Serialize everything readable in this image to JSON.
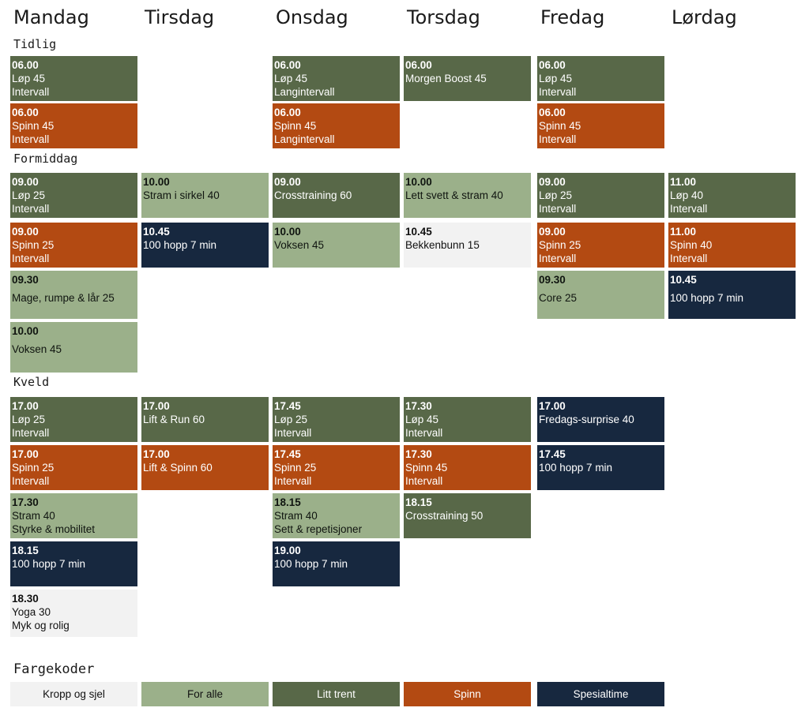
{
  "days": [
    "Mandag",
    "Tirsdag",
    "Onsdag",
    "Torsdag",
    "Fredag",
    "Lørdag"
  ],
  "sections": {
    "early": "Tidlig",
    "morning": "Formiddag",
    "evening": "Kveld"
  },
  "colors": {
    "litt_trent": "#586848",
    "for_alle": "#9bb08a",
    "spinn": "#b34a12",
    "spesialtime": "#17283f",
    "kropp_og_sjel": "#f2f2f2"
  },
  "mon": [
    {
      "time": "06.00",
      "name": "Løp 45",
      "sub": "Intervall"
    },
    {
      "time": "06.00",
      "name": "Spinn 45",
      "sub": "Intervall"
    },
    {
      "time": "09.00",
      "name": "Løp 25",
      "sub": "Intervall"
    },
    {
      "time": "09.00",
      "name": "Spinn 25",
      "sub": "Intervall"
    },
    {
      "time": "09.30",
      "name": "Mage, rumpe & lår 25"
    },
    {
      "time": "10.00",
      "name": "Voksen 45"
    },
    {
      "time": "17.00",
      "name": "Løp 25",
      "sub": "Intervall"
    },
    {
      "time": "17.00",
      "name": "Spinn 25",
      "sub": "Intervall"
    },
    {
      "time": "17.30",
      "name": "Stram 40",
      "sub": "Styrke & mobilitet"
    },
    {
      "time": "18.15",
      "name": "100 hopp 7  min"
    },
    {
      "time": "18.30",
      "name": "Yoga 30",
      "sub": "Myk og rolig"
    }
  ],
  "tue": [
    {
      "time": "10.00",
      "name": "Stram i sirkel 40"
    },
    {
      "time": "10.45",
      "name": "100 hopp 7 min"
    },
    {
      "time": "17.00",
      "name": "Lift & Run 60"
    },
    {
      "time": "17.00",
      "name": "Lift & Spinn 60"
    }
  ],
  "wed": [
    {
      "time": "06.00",
      "name": "Løp 45",
      "sub": "Langintervall"
    },
    {
      "time": "06.00",
      "name": "Spinn 45",
      "sub": "Langintervall"
    },
    {
      "time": "09.00",
      "name": "Crosstraining 60"
    },
    {
      "time": "10.00",
      "name": "Voksen 45"
    },
    {
      "time": "17.45",
      "name": "Løp 25",
      "sub": "Intervall"
    },
    {
      "time": "17.45",
      "name": "Spinn 25",
      "sub": "Intervall"
    },
    {
      "time": "18.15",
      "name": "Stram 40",
      "sub": "Sett & repetisjoner"
    },
    {
      "time": "19.00",
      "name": "100 hopp 7  min"
    }
  ],
  "thu": [
    {
      "time": "06.00",
      "name": "Morgen Boost 45"
    },
    {
      "time": "10.00",
      "name": "Lett svett & stram 40"
    },
    {
      "time": "10.45",
      "name": "Bekkenbunn 15"
    },
    {
      "time": "17.30",
      "name": "Løp 45",
      "sub": "Intervall"
    },
    {
      "time": "17.30",
      "name": "Spinn 45",
      "sub": "Intervall"
    },
    {
      "time": "18.15",
      "name": "Crosstraining 50"
    }
  ],
  "fri": [
    {
      "time": "06.00",
      "name": "Løp 45",
      "sub": "Intervall"
    },
    {
      "time": "06.00",
      "name": "Spinn 45",
      "sub": "Intervall"
    },
    {
      "time": "09.00",
      "name": "Løp 25",
      "sub": "Intervall"
    },
    {
      "time": "09.00",
      "name": "Spinn 25",
      "sub": "Intervall"
    },
    {
      "time": "09.30",
      "name": "Core 25"
    },
    {
      "time": "17.00",
      "name": "Fredags-surprise 40"
    },
    {
      "time": "17.45",
      "name": "100 hopp 7  min"
    }
  ],
  "sat": [
    {
      "time": "11.00",
      "name": "Løp 40",
      "sub": "Intervall"
    },
    {
      "time": "11.00",
      "name": "Spinn 40",
      "sub": "Intervall"
    },
    {
      "time": "10.45",
      "name": "100 hopp 7  min"
    }
  ],
  "legend": {
    "title": "Fargekoder",
    "items": [
      "Kropp og sjel",
      "For alle",
      "Litt trent",
      "Spinn",
      "Spesialtime"
    ]
  }
}
